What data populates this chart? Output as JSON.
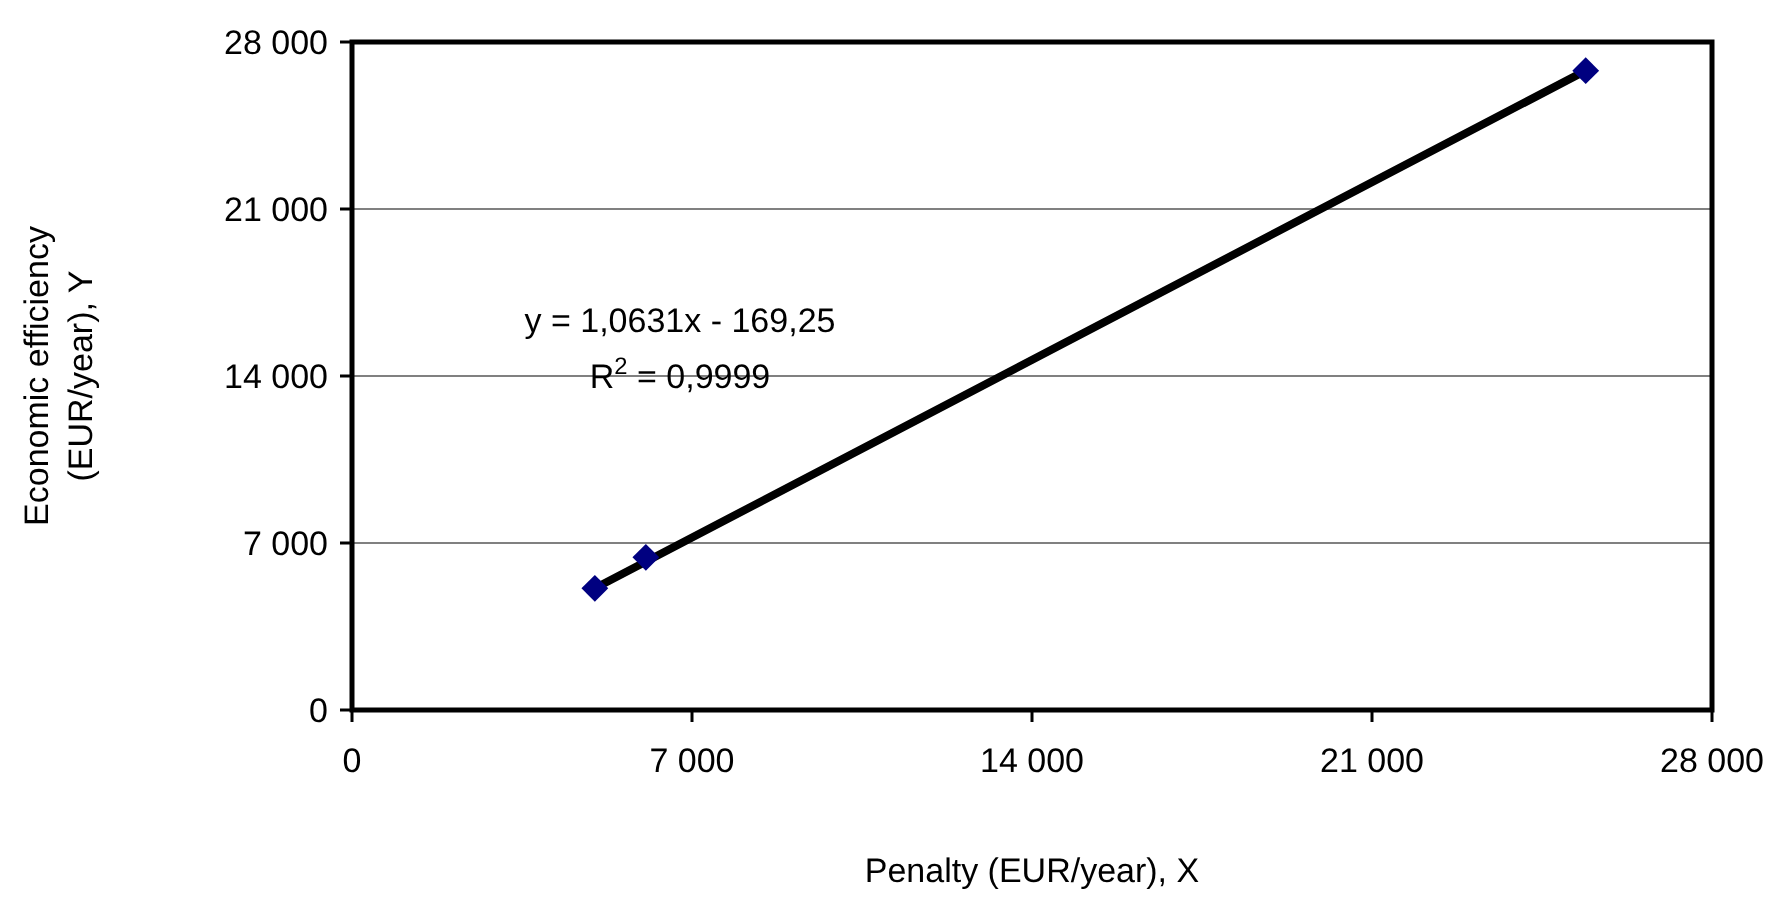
{
  "chart_data": {
    "type": "scatter",
    "xlabel": "Penalty (EUR/year), X",
    "ylabel": "Economic efficiency (EUR/year), Y",
    "xlim": [
      0,
      28000
    ],
    "xticks": [
      0,
      {
        "value": 7000,
        "label": "7 000"
      },
      {
        "value": 14000,
        "label": "14 000"
      },
      {
        "value": 21000,
        "label": "21 000"
      },
      {
        "value": 28000,
        "label": "28 000"
      }
    ],
    "ylim": [
      0,
      28000
    ],
    "yticks": [
      0,
      {
        "value": 7000,
        "label": "7 000"
      },
      {
        "value": 14000,
        "label": "14 000"
      },
      {
        "value": 21000,
        "label": "21 000"
      },
      {
        "value": 28000,
        "label": "28 000"
      }
    ],
    "grid": "y",
    "marker": "diamond",
    "series": [
      {
        "type": "line",
        "marker": "none",
        "color": "#000000",
        "x": [
          5000,
          25400
        ],
        "values": [
          5100,
          26800
        ]
      },
      {
        "color": "#000080",
        "x": [
          5000,
          6050,
          25400
        ],
        "values": [
          5100,
          6400,
          26800
        ]
      }
    ],
    "annotations": [
      "y = 1,0631x - 169,25",
      "R$^{2}$ = 0,9999"
    ]
  }
}
